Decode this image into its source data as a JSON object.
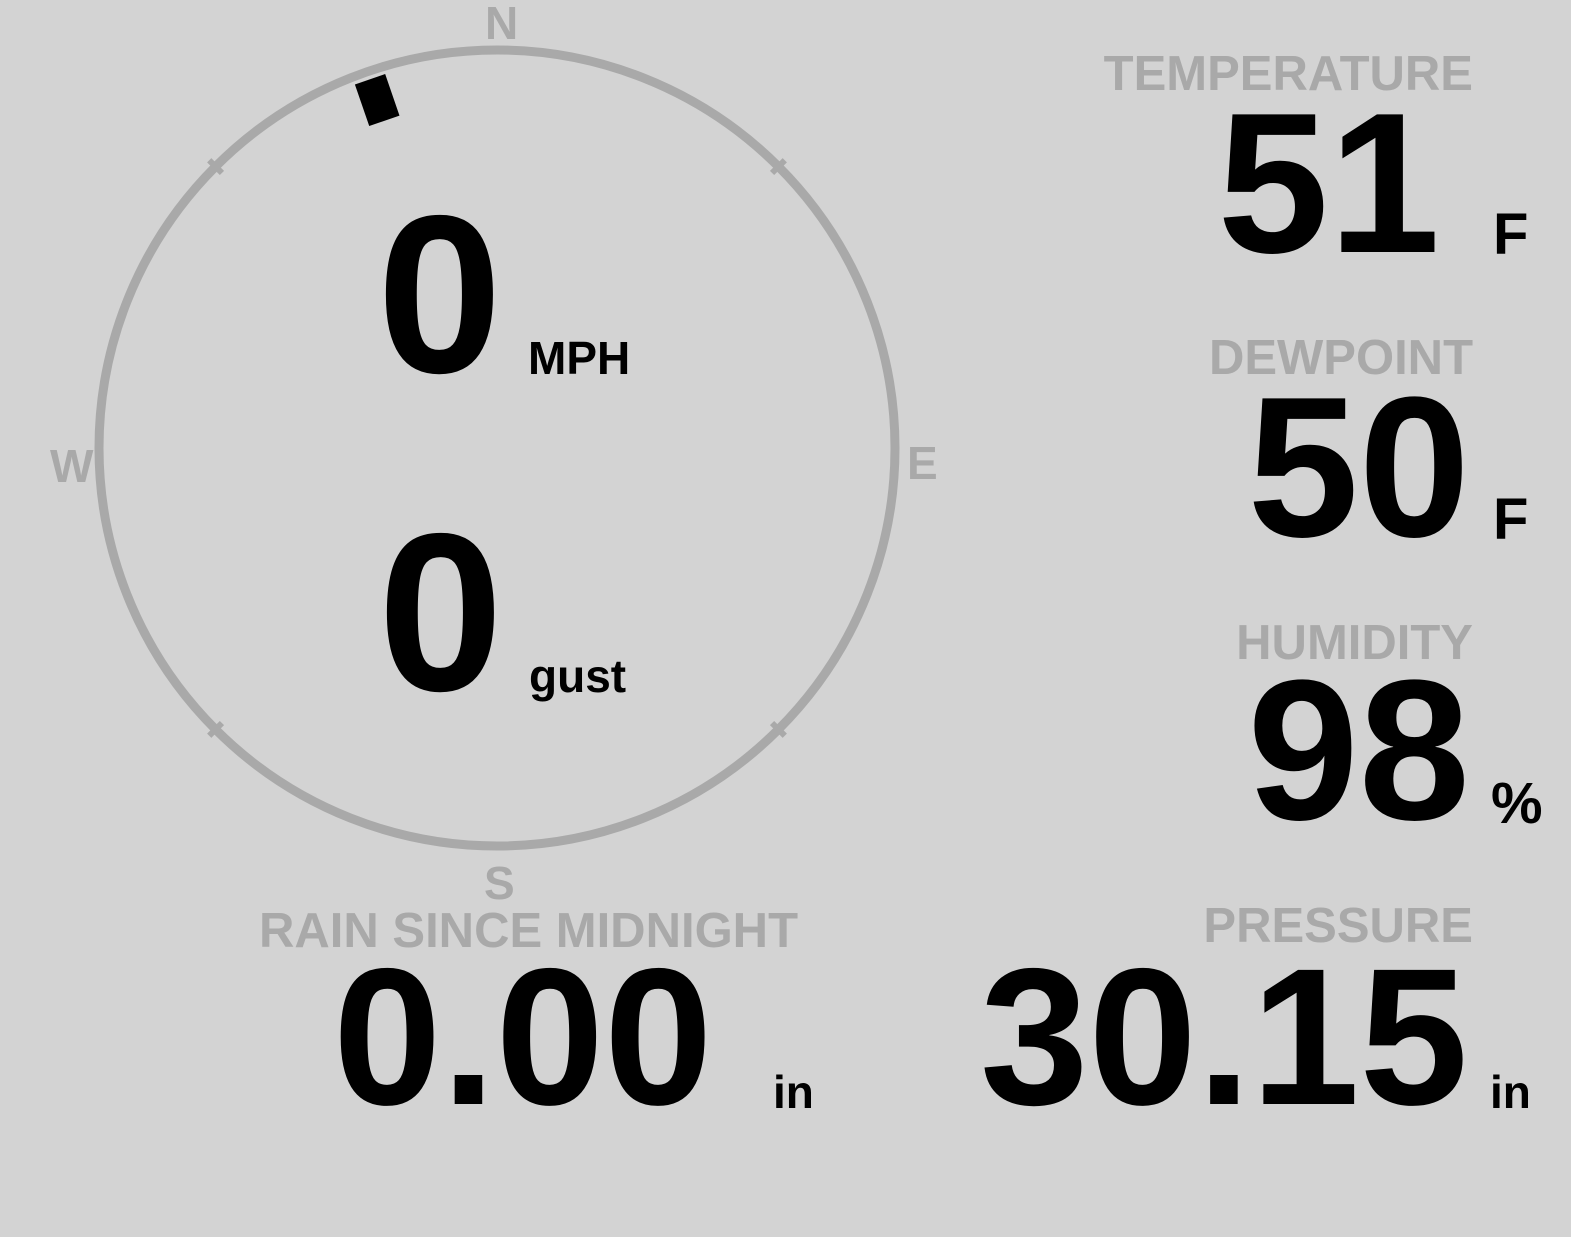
{
  "colors": {
    "background": "#d3d3d3",
    "label": "#a9a9a9",
    "value": "#000000",
    "compass_ring": "#a9a9a9"
  },
  "wind": {
    "compass": {
      "n": "N",
      "e": "E",
      "s": "S",
      "w": "W"
    },
    "direction_deg": 341,
    "speed": "0",
    "speed_unit": "MPH",
    "gust": "0",
    "gust_unit": "gust"
  },
  "temperature": {
    "label": "TEMPERATURE",
    "value": "51",
    "unit": "F"
  },
  "dewpoint": {
    "label": "DEWPOINT",
    "value": "50",
    "unit": "F"
  },
  "humidity": {
    "label": "HUMIDITY",
    "value": "98",
    "unit": "%"
  },
  "rain": {
    "label": "RAIN SINCE MIDNIGHT",
    "value": "0.00",
    "unit": "in"
  },
  "pressure": {
    "label": "PRESSURE",
    "value": "30.15",
    "unit": "in"
  }
}
